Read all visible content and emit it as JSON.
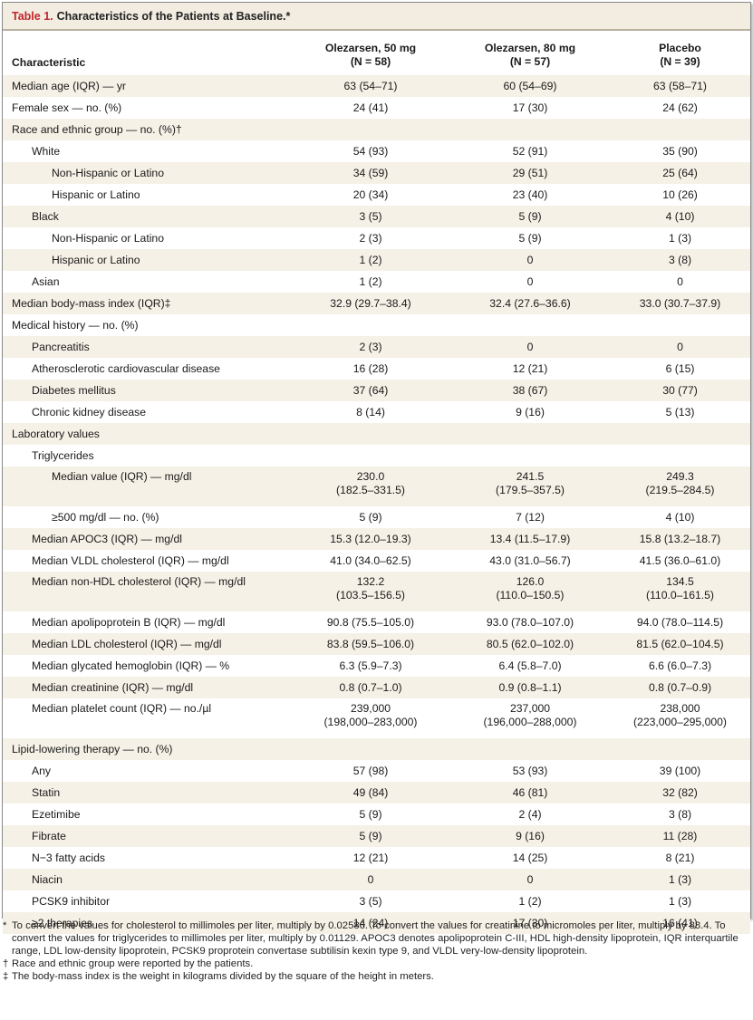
{
  "caption": {
    "label": "Table 1.",
    "title": "Characteristics of the Patients at Baseline.*"
  },
  "header": {
    "characteristic": "Characteristic",
    "col1_name": "Olezarsen, 50 mg",
    "col1_n": "(N = 58)",
    "col2_name": "Olezarsen, 80 mg",
    "col2_n": "(N = 57)",
    "col3_name": "Placebo",
    "col3_n": "(N = 39)"
  },
  "rows": [
    {
      "label": "Median age (IQR) — yr",
      "indent": 0,
      "v": [
        "63 (54–71)",
        "60 (54–69)",
        "63 (58–71)"
      ]
    },
    {
      "label": "Female sex — no. (%)",
      "indent": 0,
      "v": [
        "24 (41)",
        "17 (30)",
        "24 (62)"
      ]
    },
    {
      "label": "Race and ethnic group — no. (%)†",
      "indent": 0,
      "v": [
        "",
        "",
        ""
      ]
    },
    {
      "label": "White",
      "indent": 1,
      "v": [
        "54 (93)",
        "52 (91)",
        "35 (90)"
      ]
    },
    {
      "label": "Non-Hispanic or Latino",
      "indent": 2,
      "v": [
        "34 (59)",
        "29 (51)",
        "25 (64)"
      ]
    },
    {
      "label": "Hispanic or Latino",
      "indent": 2,
      "v": [
        "20 (34)",
        "23 (40)",
        "10 (26)"
      ]
    },
    {
      "label": "Black",
      "indent": 1,
      "v": [
        "3 (5)",
        "5 (9)",
        "4 (10)"
      ]
    },
    {
      "label": "Non-Hispanic or Latino",
      "indent": 2,
      "v": [
        "2 (3)",
        "5 (9)",
        "1 (3)"
      ]
    },
    {
      "label": "Hispanic or Latino",
      "indent": 2,
      "v": [
        "1 (2)",
        "0",
        "3 (8)"
      ]
    },
    {
      "label": "Asian",
      "indent": 1,
      "v": [
        "1 (2)",
        "0",
        "0"
      ]
    },
    {
      "label": "Median body-mass index (IQR)‡",
      "indent": 0,
      "v": [
        "32.9 (29.7–38.4)",
        "32.4 (27.6–36.6)",
        "33.0 (30.7–37.9)"
      ]
    },
    {
      "label": "Medical history — no. (%)",
      "indent": 0,
      "v": [
        "",
        "",
        ""
      ]
    },
    {
      "label": "Pancreatitis",
      "indent": 1,
      "v": [
        "2 (3)",
        "0",
        "0"
      ]
    },
    {
      "label": "Atherosclerotic cardiovascular disease",
      "indent": 1,
      "v": [
        "16 (28)",
        "12 (21)",
        "6 (15)"
      ]
    },
    {
      "label": "Diabetes mellitus",
      "indent": 1,
      "v": [
        "37 (64)",
        "38 (67)",
        "30 (77)"
      ]
    },
    {
      "label": "Chronic kidney disease",
      "indent": 1,
      "v": [
        "8 (14)",
        "9 (16)",
        "5 (13)"
      ]
    },
    {
      "label": "Laboratory values",
      "indent": 0,
      "v": [
        "",
        "",
        ""
      ]
    },
    {
      "label": "Triglycerides",
      "indent": 1,
      "v": [
        "",
        "",
        ""
      ]
    },
    {
      "label": "Median value (IQR) — mg/dl",
      "indent": 2,
      "tall": true,
      "v": [
        "230.0",
        "241.5",
        "249.3"
      ],
      "v2": [
        "(182.5–331.5)",
        "(179.5–357.5)",
        "(219.5–284.5)"
      ]
    },
    {
      "label": "≥500 mg/dl — no. (%)",
      "indent": 2,
      "v": [
        "5 (9)",
        "7 (12)",
        "4 (10)"
      ]
    },
    {
      "label": "Median APOC3 (IQR) — mg/dl",
      "indent": 1,
      "v": [
        "15.3 (12.0–19.3)",
        "13.4 (11.5–17.9)",
        "15.8 (13.2–18.7)"
      ]
    },
    {
      "label": "Median VLDL cholesterol (IQR) — mg/dl",
      "indent": 1,
      "v": [
        "41.0 (34.0–62.5)",
        "43.0 (31.0–56.7)",
        "41.5 (36.0–61.0)"
      ]
    },
    {
      "label": "Median non-HDL cholesterol (IQR) — mg/dl",
      "indent": 1,
      "tall": true,
      "v": [
        "132.2",
        "126.0",
        "134.5"
      ],
      "v2": [
        "(103.5–156.5)",
        "(110.0–150.5)",
        "(110.0–161.5)"
      ]
    },
    {
      "label": "Median apolipoprotein B (IQR) — mg/dl",
      "indent": 1,
      "v": [
        "90.8 (75.5–105.0)",
        "93.0 (78.0–107.0)",
        "94.0 (78.0–114.5)"
      ]
    },
    {
      "label": "Median LDL cholesterol (IQR) — mg/dl",
      "indent": 1,
      "v": [
        "83.8 (59.5–106.0)",
        "80.5 (62.0–102.0)",
        "81.5 (62.0–104.5)"
      ]
    },
    {
      "label": "Median glycated hemoglobin (IQR) — %",
      "indent": 1,
      "v": [
        "6.3 (5.9–7.3)",
        "6.4 (5.8–7.0)",
        "6.6 (6.0–7.3)"
      ]
    },
    {
      "label": "Median creatinine (IQR) — mg/dl",
      "indent": 1,
      "v": [
        "0.8 (0.7–1.0)",
        "0.9 (0.8–1.1)",
        "0.8 (0.7–0.9)"
      ]
    },
    {
      "label": "Median platelet count (IQR) — no./µl",
      "indent": 1,
      "tall": true,
      "v": [
        "239,000",
        "237,000",
        "238,000"
      ],
      "v2": [
        "(198,000–283,000)",
        "(196,000–288,000)",
        "(223,000–295,000)"
      ]
    },
    {
      "label": "Lipid-lowering therapy — no. (%)",
      "indent": 0,
      "v": [
        "",
        "",
        ""
      ]
    },
    {
      "label": "Any",
      "indent": 1,
      "v": [
        "57 (98)",
        "53 (93)",
        "39 (100)"
      ]
    },
    {
      "label": "Statin",
      "indent": 1,
      "v": [
        "49 (84)",
        "46 (81)",
        "32 (82)"
      ]
    },
    {
      "label": "Ezetimibe",
      "indent": 1,
      "v": [
        "5 (9)",
        "2 (4)",
        "3 (8)"
      ]
    },
    {
      "label": "Fibrate",
      "indent": 1,
      "v": [
        "5 (9)",
        "9 (16)",
        "11 (28)"
      ]
    },
    {
      "label": "N−3 fatty acids",
      "indent": 1,
      "v": [
        "12 (21)",
        "14 (25)",
        "8 (21)"
      ]
    },
    {
      "label": "Niacin",
      "indent": 1,
      "v": [
        "0",
        "0",
        "1 (3)"
      ]
    },
    {
      "label": "PCSK9 inhibitor",
      "indent": 1,
      "v": [
        "3 (5)",
        "1 (2)",
        "1 (3)"
      ]
    },
    {
      "label": "≥2 therapies",
      "indent": 1,
      "v": [
        "14 (24)",
        "17 (30)",
        "16 (41)"
      ]
    }
  ],
  "footnotes": [
    {
      "mark": "*",
      "text": "To convert the values for cholesterol to millimoles per liter, multiply by 0.02586. To convert the values for creatinine to micromoles per liter, multiply by 88.4. To convert the values for triglycerides to millimoles per liter, multiply by 0.01129. APOC3 denotes apolipoprotein C-III, HDL high-density lipoprotein, IQR interquartile range, LDL low-density lipoprotein, PCSK9 proprotein convertase subtilisin kexin type 9, and VLDL very-low-density lipoprotein."
    },
    {
      "mark": "†",
      "text": "Race and ethnic group were reported by the patients."
    },
    {
      "mark": "‡",
      "text": "The body-mass index is the weight in kilograms divided by the square of the height in meters."
    }
  ]
}
